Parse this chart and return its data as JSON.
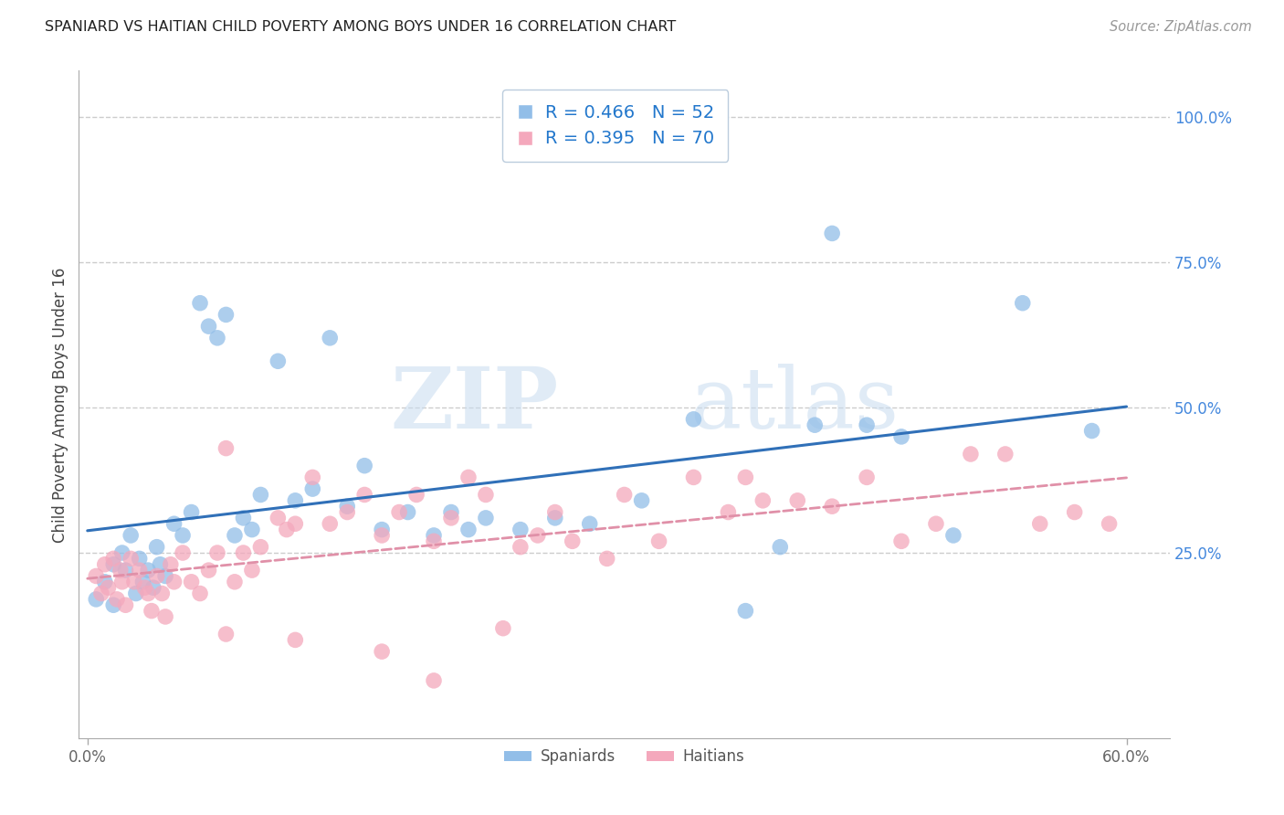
{
  "title": "SPANIARD VS HAITIAN CHILD POVERTY AMONG BOYS UNDER 16 CORRELATION CHART",
  "source": "Source: ZipAtlas.com",
  "ylabel": "Child Poverty Among Boys Under 16",
  "right_yticks": [
    "100.0%",
    "75.0%",
    "50.0%",
    "25.0%"
  ],
  "right_ytick_vals": [
    1.0,
    0.75,
    0.5,
    0.25
  ],
  "xlim": [
    0.0,
    0.6
  ],
  "ylim": [
    -0.05,
    1.1
  ],
  "spaniard_R": 0.466,
  "spaniard_N": 52,
  "haitian_R": 0.395,
  "haitian_N": 70,
  "spaniard_color": "#92BEE8",
  "haitian_color": "#F4A8BC",
  "spaniard_line_color": "#3070B8",
  "haitian_line_color": "#E090A8",
  "spaniard_x": [
    0.005,
    0.01,
    0.015,
    0.015,
    0.02,
    0.022,
    0.025,
    0.028,
    0.03,
    0.032,
    0.035,
    0.038,
    0.04,
    0.042,
    0.045,
    0.05,
    0.055,
    0.06,
    0.065,
    0.07,
    0.075,
    0.08,
    0.085,
    0.09,
    0.095,
    0.1,
    0.11,
    0.12,
    0.13,
    0.14,
    0.15,
    0.16,
    0.17,
    0.185,
    0.2,
    0.21,
    0.22,
    0.23,
    0.25,
    0.27,
    0.29,
    0.32,
    0.35,
    0.38,
    0.4,
    0.42,
    0.43,
    0.45,
    0.47,
    0.5,
    0.54,
    0.58
  ],
  "spaniard_y": [
    0.17,
    0.2,
    0.23,
    0.16,
    0.25,
    0.22,
    0.28,
    0.18,
    0.24,
    0.2,
    0.22,
    0.19,
    0.26,
    0.23,
    0.21,
    0.3,
    0.28,
    0.32,
    0.68,
    0.64,
    0.62,
    0.66,
    0.28,
    0.31,
    0.29,
    0.35,
    0.58,
    0.34,
    0.36,
    0.62,
    0.33,
    0.4,
    0.29,
    0.32,
    0.28,
    0.32,
    0.29,
    0.31,
    0.29,
    0.31,
    0.3,
    0.34,
    0.48,
    0.15,
    0.26,
    0.47,
    0.8,
    0.47,
    0.45,
    0.28,
    0.68,
    0.46
  ],
  "haitian_x": [
    0.005,
    0.008,
    0.01,
    0.012,
    0.015,
    0.017,
    0.019,
    0.02,
    0.022,
    0.025,
    0.027,
    0.03,
    0.033,
    0.035,
    0.037,
    0.04,
    0.043,
    0.045,
    0.048,
    0.05,
    0.055,
    0.06,
    0.065,
    0.07,
    0.075,
    0.08,
    0.085,
    0.09,
    0.095,
    0.1,
    0.11,
    0.115,
    0.12,
    0.13,
    0.14,
    0.15,
    0.16,
    0.17,
    0.18,
    0.19,
    0.2,
    0.21,
    0.22,
    0.23,
    0.24,
    0.25,
    0.26,
    0.27,
    0.28,
    0.3,
    0.31,
    0.33,
    0.35,
    0.37,
    0.39,
    0.41,
    0.43,
    0.45,
    0.47,
    0.49,
    0.51,
    0.53,
    0.55,
    0.57,
    0.59,
    0.08,
    0.12,
    0.17,
    0.2,
    0.38
  ],
  "haitian_y": [
    0.21,
    0.18,
    0.23,
    0.19,
    0.24,
    0.17,
    0.22,
    0.2,
    0.16,
    0.24,
    0.2,
    0.22,
    0.19,
    0.18,
    0.15,
    0.21,
    0.18,
    0.14,
    0.23,
    0.2,
    0.25,
    0.2,
    0.18,
    0.22,
    0.25,
    0.43,
    0.2,
    0.25,
    0.22,
    0.26,
    0.31,
    0.29,
    0.3,
    0.38,
    0.3,
    0.32,
    0.35,
    0.28,
    0.32,
    0.35,
    0.27,
    0.31,
    0.38,
    0.35,
    0.12,
    0.26,
    0.28,
    0.32,
    0.27,
    0.24,
    0.35,
    0.27,
    0.38,
    0.32,
    0.34,
    0.34,
    0.33,
    0.38,
    0.27,
    0.3,
    0.42,
    0.42,
    0.3,
    0.32,
    0.3,
    0.11,
    0.1,
    0.08,
    0.03,
    0.38
  ],
  "watermark_zip": "ZIP",
  "watermark_atlas": "atlas",
  "background_color": "#FFFFFF",
  "grid_color": "#CCCCCC"
}
